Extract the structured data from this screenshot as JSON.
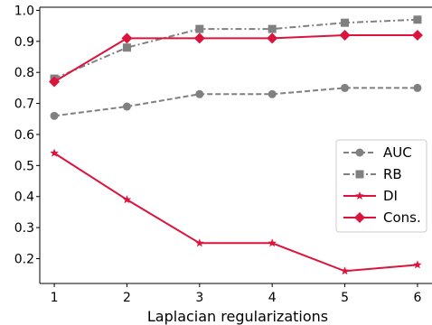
{
  "chart_data": {
    "type": "line",
    "title": "",
    "xlabel": "Laplacian regularizations",
    "ylabel": "",
    "x": [
      1,
      2,
      3,
      4,
      5,
      6
    ],
    "xticks": [
      "1",
      "2",
      "3",
      "4",
      "5",
      "6"
    ],
    "yticks": [
      "0.2",
      "0.3",
      "0.4",
      "0.5",
      "0.6",
      "0.7",
      "0.8",
      "0.9",
      "1.0"
    ],
    "xlim": [
      0.8,
      6.2
    ],
    "ylim": [
      0.12,
      1.01
    ],
    "grid": false,
    "legend_position": "center-right",
    "series": [
      {
        "name": "AUC",
        "values": [
          0.66,
          0.69,
          0.73,
          0.73,
          0.75,
          0.75
        ],
        "color": "#808080",
        "linestyle": "dashed",
        "marker": "circle"
      },
      {
        "name": "RB",
        "values": [
          0.78,
          0.88,
          0.94,
          0.94,
          0.96,
          0.97
        ],
        "color": "#808080",
        "linestyle": "dashdot",
        "marker": "square"
      },
      {
        "name": "DI",
        "values": [
          0.54,
          0.39,
          0.25,
          0.25,
          0.16,
          0.18
        ],
        "color": "#dc143c",
        "linestyle": "solid",
        "marker": "star"
      },
      {
        "name": "Cons.",
        "values": [
          0.77,
          0.91,
          0.91,
          0.91,
          0.92,
          0.92
        ],
        "color": "#dc143c",
        "linestyle": "solid",
        "marker": "diamond"
      }
    ]
  }
}
